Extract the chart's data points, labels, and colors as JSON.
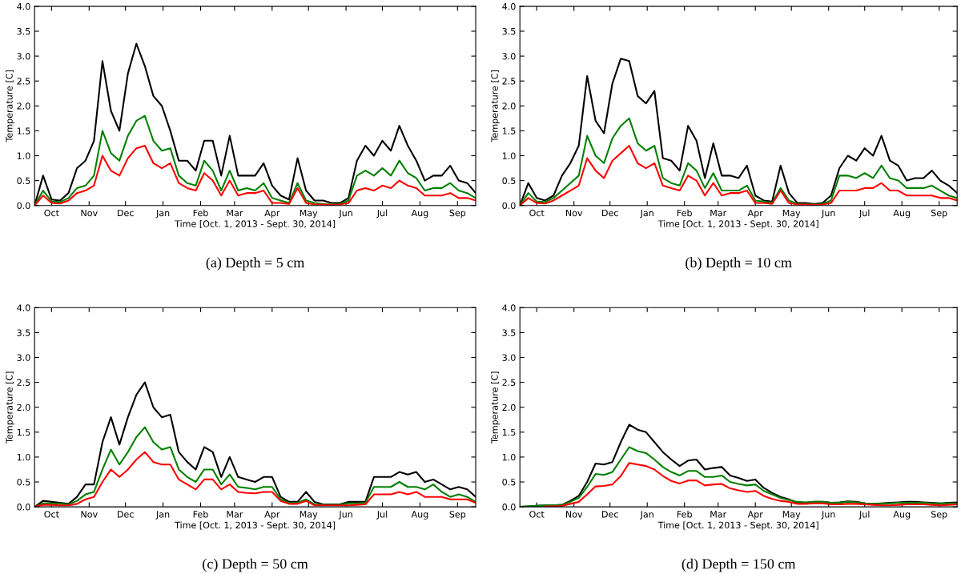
{
  "chart_data": [
    {
      "type": "line",
      "title": "(a) Depth = 5 cm",
      "xlabel": "Time [Oct. 1, 2013 - Sept. 30, 2014]",
      "ylabel": "Temperature [C]",
      "grid": false,
      "x": [
        "2013-10-01",
        "2013-10-08",
        "2013-10-15",
        "2013-10-22",
        "2013-10-29",
        "2013-11-05",
        "2013-11-12",
        "2013-11-19",
        "2013-11-26",
        "2013-12-03",
        "2013-12-10",
        "2013-12-17",
        "2013-12-24",
        "2013-12-31",
        "2014-01-07",
        "2014-01-14",
        "2014-01-21",
        "2014-01-28",
        "2014-02-04",
        "2014-02-11",
        "2014-02-18",
        "2014-02-25",
        "2014-03-04",
        "2014-03-11",
        "2014-03-18",
        "2014-03-25",
        "2014-04-01",
        "2014-04-08",
        "2014-04-15",
        "2014-04-22",
        "2014-04-29",
        "2014-05-06",
        "2014-05-13",
        "2014-05-20",
        "2014-05-27",
        "2014-06-03",
        "2014-06-10",
        "2014-06-17",
        "2014-06-24",
        "2014-07-01",
        "2014-07-08",
        "2014-07-15",
        "2014-07-22",
        "2014-07-29",
        "2014-08-05",
        "2014-08-12",
        "2014-08-19",
        "2014-08-26",
        "2014-09-02",
        "2014-09-09",
        "2014-09-16",
        "2014-09-23",
        "2014-09-30"
      ],
      "xlim": [
        "2013-10-01",
        "2014-09-30"
      ],
      "xticks": [
        {
          "value": "2013-10-15",
          "label": "Oct"
        },
        {
          "value": "2013-11-15",
          "label": "Nov"
        },
        {
          "value": "2013-12-15",
          "label": "Dec"
        },
        {
          "value": "2014-01-15",
          "label": "Jan"
        },
        {
          "value": "2014-02-15",
          "label": "Feb"
        },
        {
          "value": "2014-03-15",
          "label": "Mar"
        },
        {
          "value": "2014-04-15",
          "label": "Apr"
        },
        {
          "value": "2014-05-15",
          "label": "May"
        },
        {
          "value": "2014-06-15",
          "label": "Jun"
        },
        {
          "value": "2014-07-15",
          "label": "Jul"
        },
        {
          "value": "2014-08-15",
          "label": "Aug"
        },
        {
          "value": "2014-09-15",
          "label": "Sep"
        }
      ],
      "ylim": [
        0,
        4
      ],
      "yticks": [
        {
          "value": 0,
          "label": "0.0"
        },
        {
          "value": 0.5,
          "label": "0.5"
        },
        {
          "value": 1,
          "label": "1.0"
        },
        {
          "value": 1.5,
          "label": "1.5"
        },
        {
          "value": 2,
          "label": "2.0"
        },
        {
          "value": 2.5,
          "label": "2.5"
        },
        {
          "value": 3,
          "label": "3.0"
        },
        {
          "value": 3.5,
          "label": "3.5"
        },
        {
          "value": 4,
          "label": "4.0"
        }
      ],
      "series": [
        {
          "color": "#000000",
          "values": [
            0,
            0.6,
            0.12,
            0.1,
            0.25,
            0.75,
            0.9,
            1.3,
            2.9,
            1.9,
            1.5,
            2.65,
            3.25,
            2.8,
            2.2,
            2.0,
            1.5,
            0.9,
            0.9,
            0.7,
            1.3,
            1.3,
            0.6,
            1.4,
            0.6,
            0.6,
            0.6,
            0.85,
            0.4,
            0.2,
            0.12,
            0.95,
            0.3,
            0.1,
            0.1,
            0.05,
            0.05,
            0.15,
            0.9,
            1.2,
            1.0,
            1.3,
            1.1,
            1.6,
            1.2,
            0.9,
            0.5,
            0.6,
            0.6,
            0.8,
            0.5,
            0.45,
            0.25
          ]
        },
        {
          "color": "#008000",
          "values": [
            0,
            0.3,
            0.08,
            0.07,
            0.15,
            0.35,
            0.4,
            0.6,
            1.5,
            1.05,
            0.9,
            1.4,
            1.7,
            1.8,
            1.3,
            1.1,
            1.15,
            0.6,
            0.45,
            0.4,
            0.9,
            0.7,
            0.3,
            0.7,
            0.3,
            0.35,
            0.3,
            0.45,
            0.15,
            0.1,
            0.05,
            0.45,
            0.1,
            0.05,
            0.03,
            0.02,
            0.03,
            0.1,
            0.6,
            0.7,
            0.6,
            0.75,
            0.6,
            0.9,
            0.65,
            0.55,
            0.3,
            0.35,
            0.35,
            0.45,
            0.3,
            0.25,
            0.15
          ]
        },
        {
          "color": "#ff0000",
          "values": [
            0,
            0.2,
            0.05,
            0.04,
            0.1,
            0.25,
            0.3,
            0.4,
            1.0,
            0.7,
            0.6,
            0.95,
            1.15,
            1.2,
            0.85,
            0.75,
            0.85,
            0.45,
            0.35,
            0.3,
            0.65,
            0.5,
            0.2,
            0.5,
            0.2,
            0.25,
            0.25,
            0.3,
            0.05,
            0.05,
            0.03,
            0.35,
            0.05,
            0.02,
            0.02,
            0.01,
            0.02,
            0.05,
            0.3,
            0.35,
            0.3,
            0.4,
            0.35,
            0.5,
            0.4,
            0.35,
            0.2,
            0.2,
            0.2,
            0.25,
            0.15,
            0.15,
            0.1
          ]
        }
      ]
    },
    {
      "type": "line",
      "title": "(b) Depth = 10 cm",
      "xlabel": "Time [Oct. 1, 2013 - Sept. 30, 2014]",
      "ylabel": "Temperature [C]",
      "grid": false,
      "x": [
        "2013-10-01",
        "2013-10-08",
        "2013-10-15",
        "2013-10-22",
        "2013-10-29",
        "2013-11-05",
        "2013-11-12",
        "2013-11-19",
        "2013-11-26",
        "2013-12-03",
        "2013-12-10",
        "2013-12-17",
        "2013-12-24",
        "2013-12-31",
        "2014-01-07",
        "2014-01-14",
        "2014-01-21",
        "2014-01-28",
        "2014-02-04",
        "2014-02-11",
        "2014-02-18",
        "2014-02-25",
        "2014-03-04",
        "2014-03-11",
        "2014-03-18",
        "2014-03-25",
        "2014-04-01",
        "2014-04-08",
        "2014-04-15",
        "2014-04-22",
        "2014-04-29",
        "2014-05-06",
        "2014-05-13",
        "2014-05-20",
        "2014-05-27",
        "2014-06-03",
        "2014-06-10",
        "2014-06-17",
        "2014-06-24",
        "2014-07-01",
        "2014-07-08",
        "2014-07-15",
        "2014-07-22",
        "2014-07-29",
        "2014-08-05",
        "2014-08-12",
        "2014-08-19",
        "2014-08-26",
        "2014-09-02",
        "2014-09-09",
        "2014-09-16",
        "2014-09-23",
        "2014-09-30"
      ],
      "xlim": [
        "2013-10-01",
        "2014-09-30"
      ],
      "xticks": [
        {
          "value": "2013-10-15",
          "label": "Oct"
        },
        {
          "value": "2013-11-15",
          "label": "Nov"
        },
        {
          "value": "2013-12-15",
          "label": "Dec"
        },
        {
          "value": "2014-01-15",
          "label": "Jan"
        },
        {
          "value": "2014-02-15",
          "label": "Feb"
        },
        {
          "value": "2014-03-15",
          "label": "Mar"
        },
        {
          "value": "2014-04-15",
          "label": "Apr"
        },
        {
          "value": "2014-05-15",
          "label": "May"
        },
        {
          "value": "2014-06-15",
          "label": "Jun"
        },
        {
          "value": "2014-07-15",
          "label": "Jul"
        },
        {
          "value": "2014-08-15",
          "label": "Aug"
        },
        {
          "value": "2014-09-15",
          "label": "Sep"
        }
      ],
      "ylim": [
        0,
        4
      ],
      "yticks": [
        {
          "value": 0,
          "label": "0.0"
        },
        {
          "value": 0.5,
          "label": "0.5"
        },
        {
          "value": 1,
          "label": "1.0"
        },
        {
          "value": 1.5,
          "label": "1.5"
        },
        {
          "value": 2,
          "label": "2.0"
        },
        {
          "value": 2.5,
          "label": "2.5"
        },
        {
          "value": 3,
          "label": "3.0"
        },
        {
          "value": 3.5,
          "label": "3.5"
        },
        {
          "value": 4,
          "label": "4.0"
        }
      ],
      "series": [
        {
          "color": "#000000",
          "values": [
            0,
            0.45,
            0.15,
            0.1,
            0.2,
            0.6,
            0.85,
            1.2,
            2.6,
            1.7,
            1.45,
            2.45,
            2.95,
            2.9,
            2.2,
            2.05,
            2.3,
            0.95,
            0.9,
            0.7,
            1.6,
            1.3,
            0.55,
            1.25,
            0.6,
            0.6,
            0.55,
            0.8,
            0.2,
            0.1,
            0.08,
            0.8,
            0.25,
            0.05,
            0.05,
            0.03,
            0.05,
            0.2,
            0.75,
            1.0,
            0.9,
            1.15,
            1.0,
            1.4,
            0.9,
            0.8,
            0.5,
            0.55,
            0.55,
            0.7,
            0.5,
            0.4,
            0.25
          ]
        },
        {
          "color": "#008000",
          "values": [
            0,
            0.25,
            0.08,
            0.07,
            0.15,
            0.3,
            0.45,
            0.6,
            1.4,
            1.0,
            0.85,
            1.35,
            1.6,
            1.75,
            1.25,
            1.1,
            1.2,
            0.55,
            0.45,
            0.4,
            0.85,
            0.7,
            0.35,
            0.65,
            0.3,
            0.3,
            0.3,
            0.4,
            0.1,
            0.08,
            0.05,
            0.35,
            0.1,
            0.03,
            0.03,
            0.02,
            0.03,
            0.1,
            0.6,
            0.6,
            0.55,
            0.65,
            0.55,
            0.8,
            0.55,
            0.5,
            0.35,
            0.35,
            0.35,
            0.4,
            0.3,
            0.2,
            0.15
          ]
        },
        {
          "color": "#ff0000",
          "values": [
            0,
            0.15,
            0.05,
            0.04,
            0.1,
            0.2,
            0.3,
            0.4,
            0.95,
            0.7,
            0.55,
            0.9,
            1.05,
            1.2,
            0.85,
            0.75,
            0.85,
            0.4,
            0.35,
            0.3,
            0.6,
            0.5,
            0.2,
            0.45,
            0.2,
            0.25,
            0.25,
            0.3,
            0.05,
            0.05,
            0.03,
            0.3,
            0.05,
            0.02,
            0.02,
            0.01,
            0.02,
            0.05,
            0.3,
            0.3,
            0.3,
            0.35,
            0.35,
            0.45,
            0.3,
            0.3,
            0.2,
            0.2,
            0.2,
            0.2,
            0.15,
            0.15,
            0.1
          ]
        }
      ]
    },
    {
      "type": "line",
      "title": "(c) Depth = 50 cm",
      "xlabel": "Time [Oct. 1, 2013 - Sept. 30, 2014]",
      "ylabel": "Temperature [C]",
      "grid": false,
      "x": [
        "2013-10-01",
        "2013-10-08",
        "2013-10-15",
        "2013-10-22",
        "2013-10-29",
        "2013-11-05",
        "2013-11-12",
        "2013-11-19",
        "2013-11-26",
        "2013-12-03",
        "2013-12-10",
        "2013-12-17",
        "2013-12-24",
        "2013-12-31",
        "2014-01-07",
        "2014-01-14",
        "2014-01-21",
        "2014-01-28",
        "2014-02-04",
        "2014-02-11",
        "2014-02-18",
        "2014-02-25",
        "2014-03-04",
        "2014-03-11",
        "2014-03-18",
        "2014-03-25",
        "2014-04-01",
        "2014-04-08",
        "2014-04-15",
        "2014-04-22",
        "2014-04-29",
        "2014-05-06",
        "2014-05-13",
        "2014-05-20",
        "2014-05-27",
        "2014-06-03",
        "2014-06-10",
        "2014-06-17",
        "2014-06-24",
        "2014-07-01",
        "2014-07-08",
        "2014-07-15",
        "2014-07-22",
        "2014-07-29",
        "2014-08-05",
        "2014-08-12",
        "2014-08-19",
        "2014-08-26",
        "2014-09-02",
        "2014-09-09",
        "2014-09-16",
        "2014-09-23",
        "2014-09-30"
      ],
      "xlim": [
        "2013-10-01",
        "2014-09-30"
      ],
      "xticks": [
        {
          "value": "2013-10-15",
          "label": "Oct"
        },
        {
          "value": "2013-11-15",
          "label": "Nov"
        },
        {
          "value": "2013-12-15",
          "label": "Dec"
        },
        {
          "value": "2014-01-15",
          "label": "Jan"
        },
        {
          "value": "2014-02-15",
          "label": "Feb"
        },
        {
          "value": "2014-03-15",
          "label": "Mar"
        },
        {
          "value": "2014-04-15",
          "label": "Apr"
        },
        {
          "value": "2014-05-15",
          "label": "May"
        },
        {
          "value": "2014-06-15",
          "label": "Jun"
        },
        {
          "value": "2014-07-15",
          "label": "Jul"
        },
        {
          "value": "2014-08-15",
          "label": "Aug"
        },
        {
          "value": "2014-09-15",
          "label": "Sep"
        }
      ],
      "ylim": [
        0,
        4
      ],
      "yticks": [
        {
          "value": 0,
          "label": "0.0"
        },
        {
          "value": 0.5,
          "label": "0.5"
        },
        {
          "value": 1,
          "label": "1.0"
        },
        {
          "value": 1.5,
          "label": "1.5"
        },
        {
          "value": 2,
          "label": "2.0"
        },
        {
          "value": 2.5,
          "label": "2.5"
        },
        {
          "value": 3,
          "label": "3.0"
        },
        {
          "value": 3.5,
          "label": "3.5"
        },
        {
          "value": 4,
          "label": "4.0"
        }
      ],
      "series": [
        {
          "color": "#000000",
          "values": [
            0,
            0.12,
            0.1,
            0.08,
            0.06,
            0.2,
            0.45,
            0.45,
            1.3,
            1.8,
            1.25,
            1.8,
            2.25,
            2.5,
            2.0,
            1.8,
            1.85,
            1.1,
            0.9,
            0.75,
            1.2,
            1.1,
            0.6,
            1.0,
            0.6,
            0.55,
            0.5,
            0.6,
            0.6,
            0.2,
            0.1,
            0.1,
            0.3,
            0.1,
            0.05,
            0.05,
            0.05,
            0.1,
            0.1,
            0.1,
            0.6,
            0.6,
            0.6,
            0.7,
            0.65,
            0.7,
            0.5,
            0.55,
            0.45,
            0.35,
            0.4,
            0.35,
            0.2
          ]
        },
        {
          "color": "#008000",
          "values": [
            0,
            0.07,
            0.07,
            0.06,
            0.05,
            0.12,
            0.25,
            0.3,
            0.75,
            1.15,
            0.85,
            1.1,
            1.4,
            1.6,
            1.3,
            1.15,
            1.2,
            0.75,
            0.6,
            0.5,
            0.75,
            0.75,
            0.45,
            0.65,
            0.4,
            0.38,
            0.35,
            0.4,
            0.4,
            0.15,
            0.08,
            0.08,
            0.15,
            0.05,
            0.04,
            0.04,
            0.04,
            0.07,
            0.07,
            0.08,
            0.4,
            0.4,
            0.4,
            0.5,
            0.4,
            0.4,
            0.35,
            0.45,
            0.3,
            0.2,
            0.25,
            0.2,
            0.1
          ]
        },
        {
          "color": "#ff0000",
          "values": [
            0,
            0.04,
            0.04,
            0.03,
            0.03,
            0.06,
            0.15,
            0.2,
            0.5,
            0.75,
            0.6,
            0.75,
            0.95,
            1.1,
            0.9,
            0.85,
            0.85,
            0.55,
            0.45,
            0.35,
            0.55,
            0.55,
            0.35,
            0.45,
            0.3,
            0.28,
            0.27,
            0.3,
            0.3,
            0.12,
            0.06,
            0.06,
            0.12,
            0.03,
            0.03,
            0.03,
            0.03,
            0.03,
            0.04,
            0.05,
            0.25,
            0.25,
            0.25,
            0.3,
            0.25,
            0.3,
            0.2,
            0.2,
            0.2,
            0.15,
            0.15,
            0.15,
            0.08
          ]
        }
      ]
    },
    {
      "type": "line",
      "title": "(d) Depth = 150 cm",
      "xlabel": "Time [Oct. 1, 2013 - Sept. 30, 2014]",
      "ylabel": "Temperature [C]",
      "grid": false,
      "x": [
        "2013-10-01",
        "2013-10-08",
        "2013-10-15",
        "2013-10-22",
        "2013-10-29",
        "2013-11-05",
        "2013-11-12",
        "2013-11-19",
        "2013-11-26",
        "2013-12-03",
        "2013-12-10",
        "2013-12-17",
        "2013-12-24",
        "2013-12-31",
        "2014-01-07",
        "2014-01-14",
        "2014-01-21",
        "2014-01-28",
        "2014-02-04",
        "2014-02-11",
        "2014-02-18",
        "2014-02-25",
        "2014-03-04",
        "2014-03-11",
        "2014-03-18",
        "2014-03-25",
        "2014-04-01",
        "2014-04-08",
        "2014-04-15",
        "2014-04-22",
        "2014-04-29",
        "2014-05-06",
        "2014-05-13",
        "2014-05-20",
        "2014-05-27",
        "2014-06-03",
        "2014-06-10",
        "2014-06-17",
        "2014-06-24",
        "2014-07-01",
        "2014-07-08",
        "2014-07-15",
        "2014-07-22",
        "2014-07-29",
        "2014-08-05",
        "2014-08-12",
        "2014-08-19",
        "2014-08-26",
        "2014-09-02",
        "2014-09-09",
        "2014-09-16",
        "2014-09-23",
        "2014-09-30"
      ],
      "xlim": [
        "2013-10-01",
        "2014-09-30"
      ],
      "xticks": [
        {
          "value": "2013-10-15",
          "label": "Oct"
        },
        {
          "value": "2013-11-15",
          "label": "Nov"
        },
        {
          "value": "2013-12-15",
          "label": "Dec"
        },
        {
          "value": "2014-01-15",
          "label": "Jan"
        },
        {
          "value": "2014-02-15",
          "label": "Feb"
        },
        {
          "value": "2014-03-15",
          "label": "Mar"
        },
        {
          "value": "2014-04-15",
          "label": "Apr"
        },
        {
          "value": "2014-05-15",
          "label": "May"
        },
        {
          "value": "2014-06-15",
          "label": "Jun"
        },
        {
          "value": "2014-07-15",
          "label": "Jul"
        },
        {
          "value": "2014-08-15",
          "label": "Aug"
        },
        {
          "value": "2014-09-15",
          "label": "Sep"
        }
      ],
      "ylim": [
        0,
        4
      ],
      "yticks": [
        {
          "value": 0,
          "label": "0.0"
        },
        {
          "value": 0.5,
          "label": "0.5"
        },
        {
          "value": 1,
          "label": "1.0"
        },
        {
          "value": 1.5,
          "label": "1.5"
        },
        {
          "value": 2,
          "label": "2.0"
        },
        {
          "value": 2.5,
          "label": "2.5"
        },
        {
          "value": 3,
          "label": "3.0"
        },
        {
          "value": 3.5,
          "label": "3.5"
        },
        {
          "value": 4,
          "label": "4.0"
        }
      ],
      "series": [
        {
          "color": "#000000",
          "values": [
            0,
            0.01,
            0.02,
            0.03,
            0.03,
            0.04,
            0.12,
            0.22,
            0.5,
            0.87,
            0.85,
            0.9,
            1.3,
            1.65,
            1.55,
            1.5,
            1.3,
            1.1,
            0.95,
            0.82,
            0.93,
            0.95,
            0.75,
            0.78,
            0.8,
            0.63,
            0.58,
            0.52,
            0.55,
            0.38,
            0.28,
            0.2,
            0.15,
            0.08,
            0.08,
            0.1,
            0.1,
            0.08,
            0.09,
            0.11,
            0.1,
            0.07,
            0.06,
            0.07,
            0.08,
            0.09,
            0.1,
            0.1,
            0.09,
            0.08,
            0.07,
            0.08,
            0.09
          ]
        },
        {
          "color": "#008000",
          "values": [
            0,
            0.01,
            0.02,
            0.03,
            0.03,
            0.04,
            0.1,
            0.18,
            0.4,
            0.66,
            0.64,
            0.7,
            0.95,
            1.2,
            1.12,
            1.08,
            0.95,
            0.8,
            0.7,
            0.63,
            0.72,
            0.72,
            0.6,
            0.6,
            0.63,
            0.5,
            0.46,
            0.43,
            0.45,
            0.32,
            0.25,
            0.18,
            0.14,
            0.1,
            0.09,
            0.1,
            0.1,
            0.08,
            0.08,
            0.1,
            0.09,
            0.07,
            0.06,
            0.06,
            0.07,
            0.08,
            0.08,
            0.08,
            0.08,
            0.07,
            0.06,
            0.07,
            0.07
          ]
        },
        {
          "color": "#ff0000",
          "values": [
            null,
            null,
            null,
            0.01,
            0.01,
            0.02,
            0.06,
            0.1,
            0.25,
            0.41,
            0.42,
            0.45,
            0.62,
            0.88,
            0.85,
            0.82,
            0.75,
            0.62,
            0.52,
            0.47,
            0.53,
            0.53,
            0.43,
            0.45,
            0.46,
            0.37,
            0.33,
            0.3,
            0.32,
            0.22,
            0.16,
            0.12,
            0.1,
            0.06,
            0.06,
            0.07,
            0.07,
            0.05,
            0.05,
            0.06,
            0.06,
            0.05,
            0.04,
            0.03,
            0.03,
            0.04,
            0.05,
            0.05,
            0.05,
            0.04,
            0.03,
            0.04,
            0.05
          ]
        }
      ]
    }
  ]
}
